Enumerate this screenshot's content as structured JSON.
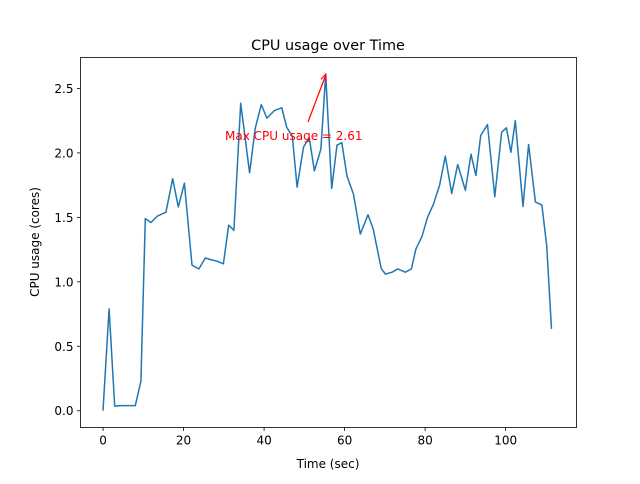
{
  "chart_data": {
    "type": "line",
    "title": "CPU usage over Time",
    "xlabel": "Time (sec)",
    "ylabel": "CPU usage (cores)",
    "xlim": [
      -5.6,
      117.6
    ],
    "ylim": [
      -0.13,
      2.74
    ],
    "xticks": [
      0,
      20,
      40,
      60,
      80,
      100
    ],
    "yticks": [
      0.0,
      0.5,
      1.0,
      1.5,
      2.0,
      2.5
    ],
    "ytick_labels": [
      "0.0",
      "0.5",
      "1.0",
      "1.5",
      "2.0",
      "2.5"
    ],
    "grid": false,
    "series_color": "#1f77b4",
    "x": [
      0,
      1.5,
      2.9,
      4.2,
      8.0,
      9.4,
      10.5,
      11.9,
      13.5,
      15.6,
      17.3,
      18.7,
      20.2,
      22.1,
      23.8,
      25.4,
      27.0,
      28.3,
      29.9,
      31.2,
      32.5,
      34.2,
      36.4,
      37.8,
      39.3,
      40.7,
      42.6,
      44.4,
      45.6,
      47.0,
      48.2,
      49.8,
      51.2,
      52.5,
      54.1,
      55.3,
      56.8,
      58.1,
      59.3,
      60.6,
      62.2,
      63.9,
      65.8,
      67.1,
      69.1,
      70.1,
      71.8,
      73.2,
      75.1,
      76.6,
      77.7,
      79.2,
      80.6,
      82.1,
      83.6,
      85.0,
      86.6,
      88.1,
      90.0,
      91.4,
      92.6,
      93.8,
      95.5,
      97.3,
      99.0,
      100.2,
      101.3,
      102.4,
      104.3,
      105.7,
      107.4,
      109.0,
      110.2,
      111.4
    ],
    "y": [
      0.0,
      0.79,
      0.035,
      0.04,
      0.04,
      0.23,
      1.49,
      1.46,
      1.51,
      1.54,
      1.8,
      1.58,
      1.765,
      1.13,
      1.1,
      1.185,
      1.17,
      1.16,
      1.14,
      1.44,
      1.4,
      2.385,
      1.845,
      2.19,
      2.375,
      2.27,
      2.33,
      2.35,
      2.2,
      2.13,
      1.735,
      2.045,
      2.12,
      1.86,
      2.03,
      2.61,
      1.725,
      2.06,
      2.08,
      1.82,
      1.68,
      1.37,
      1.52,
      1.41,
      1.105,
      1.06,
      1.075,
      1.1,
      1.075,
      1.1,
      1.255,
      1.35,
      1.5,
      1.605,
      1.75,
      1.975,
      1.685,
      1.91,
      1.71,
      1.99,
      1.825,
      2.135,
      2.22,
      1.66,
      2.16,
      2.195,
      2.005,
      2.25,
      1.585,
      2.065,
      1.62,
      1.595,
      1.28,
      0.635
    ],
    "annotation": {
      "text": "Max CPU usage = 2.61",
      "color": "#ff0000",
      "point": [
        55.3,
        2.61
      ],
      "text_position": [
        30.3,
        2.1
      ]
    }
  }
}
